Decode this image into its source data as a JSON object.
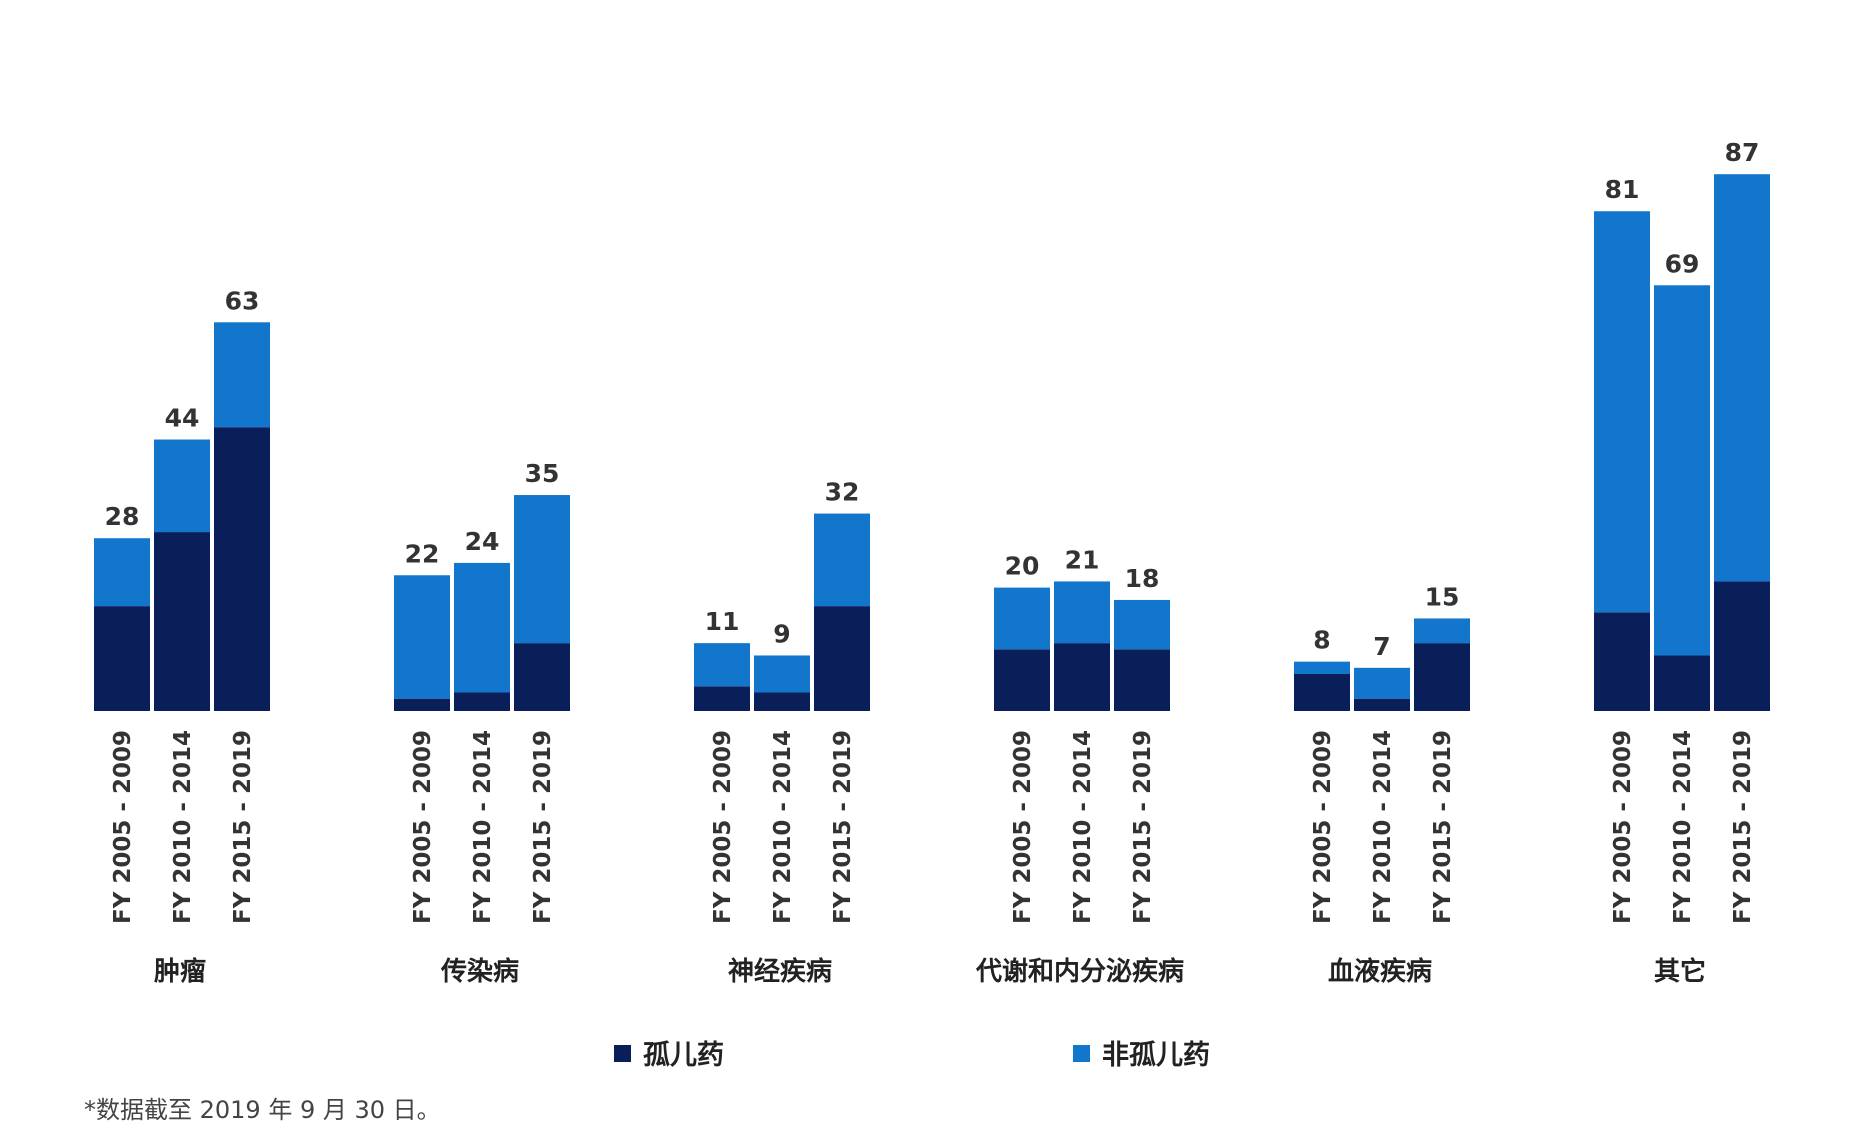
{
  "colors": {
    "orphan": "#0a1e5a",
    "non_orphan": "#1276cc"
  },
  "legend": {
    "orphan_label": "孤儿药",
    "non_orphan_label": "非孤儿药"
  },
  "footnote": "*数据截至 2019 年 9 月 30 日。",
  "chart_data": {
    "type": "bar",
    "stacked": true,
    "legend_position": "bottom",
    "grid": false,
    "ylim": [
      0,
      90
    ],
    "periods": [
      "FY 2005 - 2009",
      "FY 2010 - 2014",
      "FY 2015 - 2019"
    ],
    "categories": [
      "肿瘤",
      "传染病",
      "神经疾病",
      "代谢和内分泌疾病",
      "血液疾病",
      "其它"
    ],
    "series": [
      {
        "name": "孤儿药",
        "values": [
          [
            17,
            29,
            46
          ],
          [
            2,
            3,
            11
          ],
          [
            4,
            3,
            17
          ],
          [
            10,
            11,
            10
          ],
          [
            6,
            2,
            11
          ],
          [
            16,
            9,
            21
          ]
        ]
      },
      {
        "name": "非孤儿药",
        "values": [
          [
            11,
            15,
            17
          ],
          [
            20,
            21,
            24
          ],
          [
            7,
            6,
            15
          ],
          [
            10,
            10,
            8
          ],
          [
            2,
            5,
            4
          ],
          [
            65,
            60,
            66
          ]
        ]
      }
    ],
    "totals": [
      [
        28,
        44,
        63
      ],
      [
        22,
        24,
        35
      ],
      [
        11,
        9,
        32
      ],
      [
        20,
        21,
        18
      ],
      [
        8,
        7,
        15
      ],
      [
        81,
        69,
        87
      ]
    ]
  }
}
